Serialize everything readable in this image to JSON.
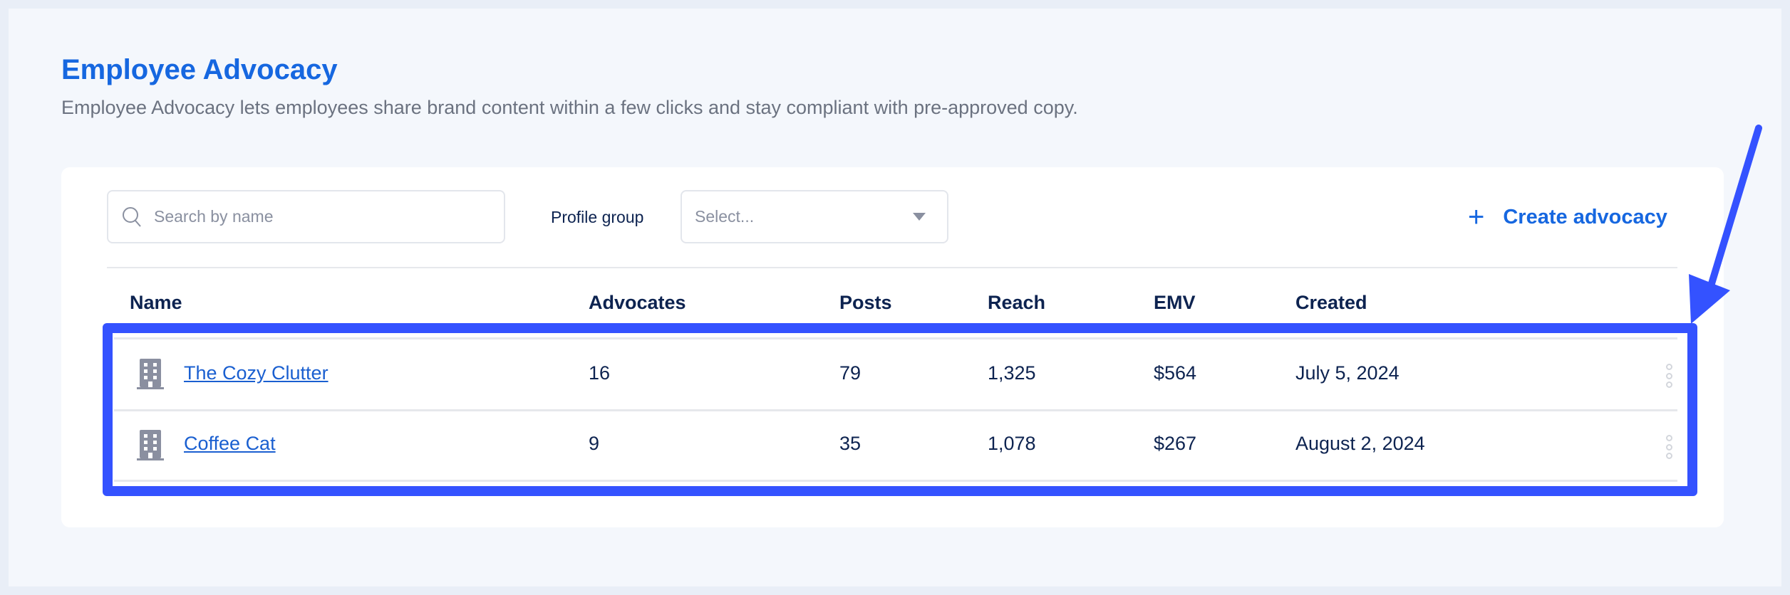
{
  "header": {
    "title": "Employee Advocacy",
    "subtitle": "Employee Advocacy lets employees share brand content within a few clicks and stay compliant with pre-approved copy."
  },
  "toolbar": {
    "search_placeholder": "Search by name",
    "profile_group_label": "Profile group",
    "profile_group_placeholder": "Select...",
    "create_label": "Create advocacy"
  },
  "table": {
    "columns": [
      "Name",
      "Advocates",
      "Posts",
      "Reach",
      "EMV",
      "Created"
    ],
    "rows": [
      {
        "name": "The Cozy Clutter",
        "advocates": "16",
        "posts": "79",
        "reach": "1,325",
        "emv": "$564",
        "created": "July 5, 2024"
      },
      {
        "name": "Coffee Cat",
        "advocates": "9",
        "posts": "35",
        "reach": "1,078",
        "emv": "$267",
        "created": "August 2, 2024"
      }
    ]
  },
  "annotation": {
    "highlight_color": "#3452ff"
  },
  "colors": {
    "accent": "#1667e0",
    "text": "#0d2350"
  }
}
